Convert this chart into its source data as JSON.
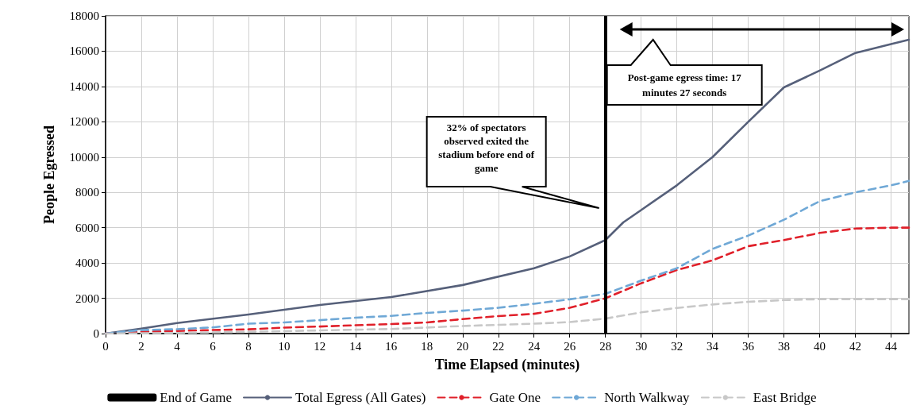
{
  "chart_data": {
    "type": "line",
    "xlabel": "Time Elapsed (minutes)",
    "ylabel": "People Egressed",
    "xlim": [
      0,
      45
    ],
    "xticks": [
      0,
      2,
      4,
      6,
      8,
      10,
      12,
      14,
      16,
      18,
      20,
      22,
      24,
      26,
      28,
      30,
      32,
      34,
      36,
      38,
      40,
      42,
      44
    ],
    "ylim": [
      0,
      18000
    ],
    "yticks": [
      0,
      2000,
      4000,
      6000,
      8000,
      10000,
      12000,
      14000,
      16000,
      18000
    ],
    "grid": true,
    "legend": "bottom",
    "marker": "none",
    "series": [
      {
        "name": "Total Egress (All Gates)",
        "color": "#56607a",
        "line_style": "solid",
        "x": [
          0,
          2,
          4,
          8,
          12,
          16,
          20,
          24,
          26,
          28,
          29,
          30,
          32,
          34,
          36,
          38,
          40,
          42,
          44,
          45
        ],
        "values": [
          0,
          280,
          600,
          1080,
          1620,
          2070,
          2750,
          3700,
          4370,
          5300,
          6300,
          7000,
          8400,
          10000,
          12000,
          13950,
          14900,
          15900,
          16400,
          16650
        ]
      },
      {
        "name": "Gate One",
        "color": "#e0202a",
        "line_style": "dashed",
        "x": [
          0,
          2,
          4,
          6,
          8,
          10,
          12,
          14,
          16,
          18,
          20,
          22,
          24,
          26,
          28,
          30,
          32,
          34,
          36,
          38,
          40,
          42,
          44,
          45
        ],
        "values": [
          0,
          100,
          150,
          200,
          240,
          340,
          400,
          470,
          540,
          630,
          820,
          990,
          1120,
          1460,
          2000,
          2850,
          3600,
          4150,
          4950,
          5300,
          5700,
          5950,
          6000,
          6000
        ]
      },
      {
        "name": "North Walkway",
        "color": "#6fa8d6",
        "line_style": "dashed",
        "x": [
          0,
          2,
          4,
          6,
          8,
          10,
          12,
          14,
          16,
          18,
          20,
          22,
          24,
          26,
          28,
          30,
          32,
          34,
          36,
          38,
          40,
          42,
          44,
          45
        ],
        "values": [
          0,
          200,
          250,
          350,
          560,
          630,
          760,
          900,
          1000,
          1170,
          1300,
          1460,
          1690,
          1940,
          2250,
          3000,
          3700,
          4800,
          5550,
          6450,
          7500,
          8000,
          8400,
          8650
        ]
      },
      {
        "name": "East Bridge",
        "color": "#c8c8c8",
        "line_style": "dashed",
        "x": [
          0,
          4,
          8,
          12,
          16,
          20,
          24,
          26,
          28,
          30,
          32,
          34,
          36,
          38,
          40,
          42,
          44,
          45
        ],
        "values": [
          0,
          30,
          100,
          180,
          260,
          430,
          560,
          650,
          850,
          1200,
          1450,
          1650,
          1800,
          1900,
          1950,
          1950,
          1950,
          1950
        ]
      }
    ],
    "ref_lines": [
      {
        "axis": "x",
        "value": 28,
        "label": "End of Game",
        "color": "#000000"
      }
    ],
    "annotations": [
      "32% of spectators observed exited the stadium before end of game",
      "Post-game egress time: 17 minutes 27 seconds"
    ]
  }
}
